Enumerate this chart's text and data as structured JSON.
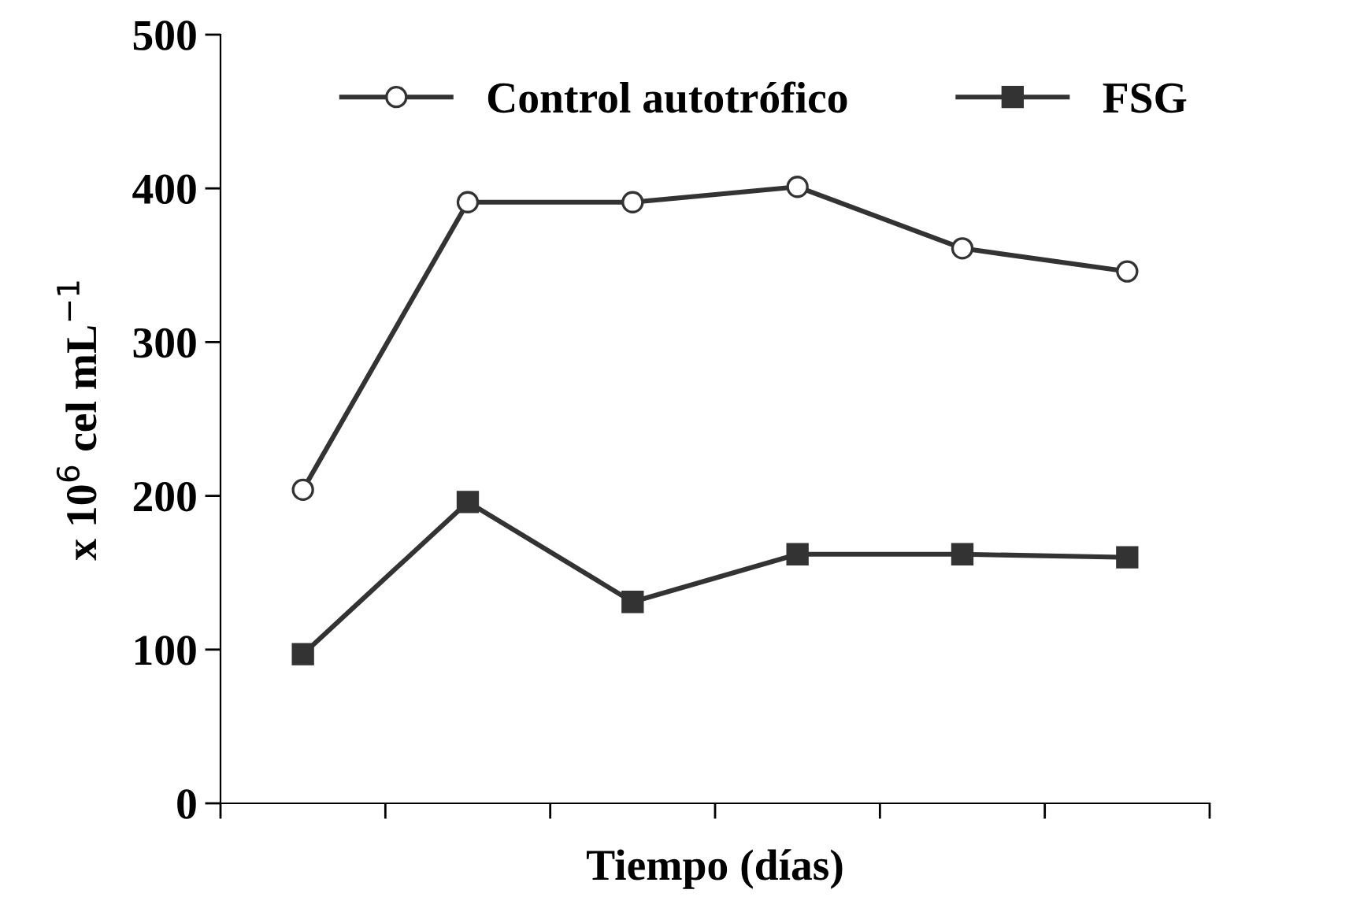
{
  "chart_data": {
    "type": "line",
    "xlabel": "Tiempo (días)",
    "ylabel": "x 10$^{6}$ cel mL$^{−1}$",
    "categories": [
      null,
      null,
      null,
      null,
      null,
      null
    ],
    "series": [
      {
        "name": "Control autotrófico",
        "color": "#333333",
        "marker": "circle",
        "values": [
          204,
          391,
          391,
          401,
          361,
          346
        ]
      },
      {
        "name": "FSG",
        "color": "#333333",
        "marker": "square",
        "values": [
          97,
          196,
          131,
          162,
          162,
          160
        ]
      }
    ],
    "ylim": [
      0,
      500
    ],
    "yticks": [
      0,
      100,
      200,
      300,
      400,
      500
    ],
    "tick_labels": "y",
    "legend": "top",
    "grid": false,
    "line_style": "solid"
  }
}
